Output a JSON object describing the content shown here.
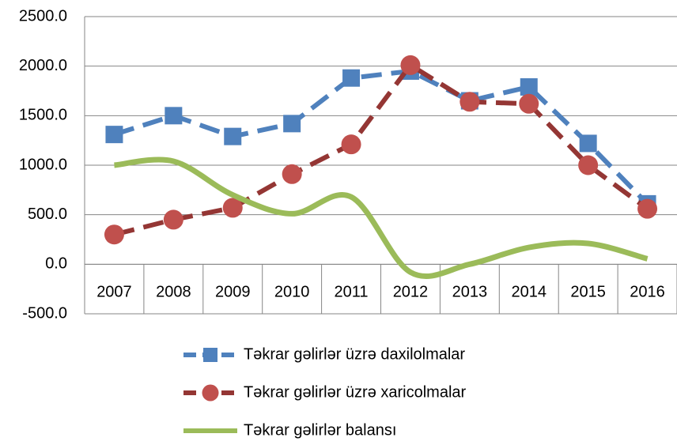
{
  "chart_data": {
    "type": "line",
    "categories": [
      "2007",
      "2008",
      "2009",
      "2010",
      "2011",
      "2012",
      "2013",
      "2014",
      "2015",
      "2016"
    ],
    "series": [
      {
        "name": "Təkrar gəlirlər üzrə daxilolmalar",
        "color": "#4f81bd",
        "marker": "square",
        "dashed": true,
        "smooth": false,
        "values": [
          1310,
          1500,
          1290,
          1420,
          1880,
          1950,
          1650,
          1790,
          1220,
          610
        ]
      },
      {
        "name": "Təkrar gəlirlər üzrə xaricolmalar",
        "color": "#c0504d",
        "line_color": "#943634",
        "marker": "circle",
        "dashed": true,
        "smooth": false,
        "values": [
          300,
          450,
          570,
          910,
          1210,
          2010,
          1640,
          1620,
          1000,
          560
        ]
      },
      {
        "name": "Təkrar gəlirlər balansı",
        "color": "#9bbb59",
        "marker": "none",
        "dashed": false,
        "smooth": true,
        "values": [
          1000,
          1040,
          700,
          510,
          680,
          -80,
          0,
          170,
          210,
          55
        ]
      }
    ],
    "ylim": [
      -500,
      2500
    ],
    "yticks": [
      {
        "value": -500,
        "label": "-500.0"
      },
      {
        "value": 0,
        "label": "0.0"
      },
      {
        "value": 500,
        "label": "500.0"
      },
      {
        "value": 1000,
        "label": "1000.0"
      },
      {
        "value": 1500,
        "label": "1500.0"
      },
      {
        "value": 2000,
        "label": "2000.0"
      },
      {
        "value": 2500,
        "label": "2500.0"
      }
    ],
    "grid": true,
    "legend": "bottom"
  }
}
